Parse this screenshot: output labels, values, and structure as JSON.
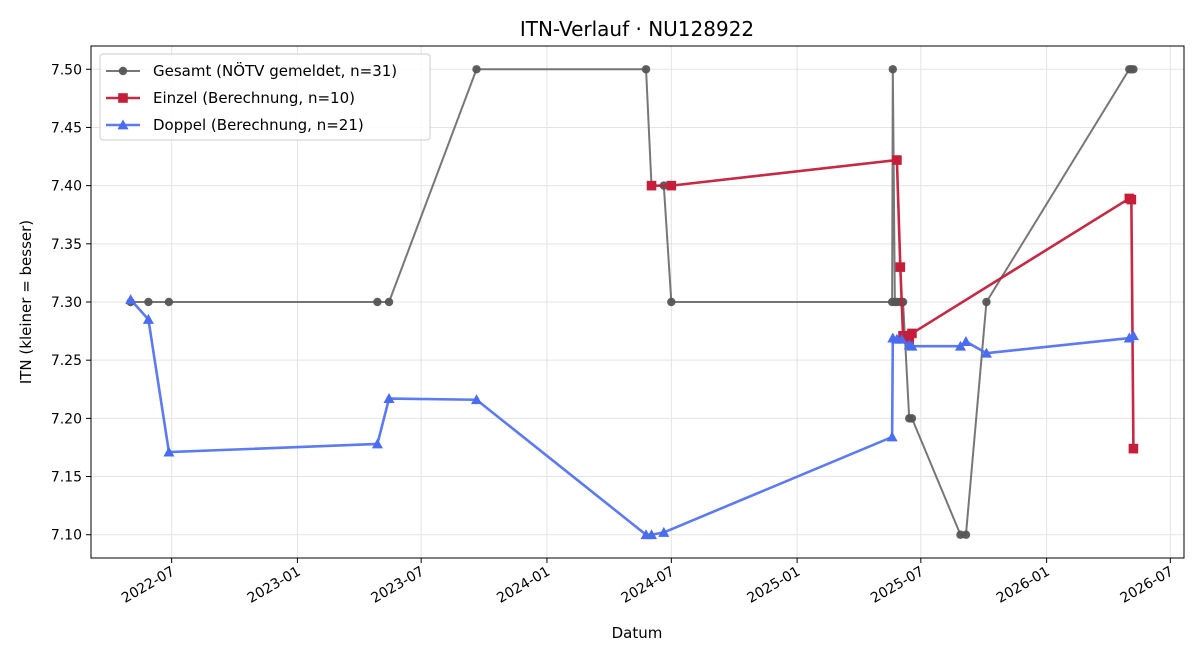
{
  "chart_data": {
    "type": "line",
    "title": "ITN-Verlauf · NU128922",
    "xlabel": "Datum",
    "ylabel": "ITN  (kleiner = besser)",
    "xlim": [
      "2022-03-05",
      "2026-07-21"
    ],
    "ylim": [
      7.08,
      7.52
    ],
    "x_ticks": [
      "2022-07-01",
      "2023-01-01",
      "2023-07-01",
      "2024-01-01",
      "2024-07-01",
      "2025-01-01",
      "2025-07-01",
      "2026-01-01",
      "2026-07-01"
    ],
    "x_tick_labels": [
      "2022-07",
      "2023-01",
      "2023-07",
      "2024-01",
      "2024-07",
      "2025-01",
      "2025-07",
      "2026-01",
      "2026-07"
    ],
    "y_ticks": [
      7.1,
      7.15,
      7.2,
      7.25,
      7.3,
      7.35,
      7.4,
      7.45,
      7.5
    ],
    "y_tick_labels": [
      "7.10",
      "7.15",
      "7.20",
      "7.25",
      "7.30",
      "7.35",
      "7.40",
      "7.45",
      "7.50"
    ],
    "grid": true,
    "legend_position": "top-left",
    "series": [
      {
        "name": "Gesamt (NÖTV gemeldet, n=31)",
        "color": "#555555",
        "marker": "circle",
        "points": [
          [
            "2022-05-02",
            7.3
          ],
          [
            "2022-05-28",
            7.3
          ],
          [
            "2022-06-27",
            7.3
          ],
          [
            "2023-04-28",
            7.3
          ],
          [
            "2023-05-15",
            7.3
          ],
          [
            "2023-09-20",
            7.5
          ],
          [
            "2024-05-25",
            7.5
          ],
          [
            "2024-06-02",
            7.4
          ],
          [
            "2024-06-20",
            7.4
          ],
          [
            "2024-07-01",
            7.3
          ],
          [
            "2025-05-20",
            7.3
          ],
          [
            "2025-05-21",
            7.5
          ],
          [
            "2025-05-24",
            7.3
          ],
          [
            "2025-05-27",
            7.3
          ],
          [
            "2025-06-01",
            7.3
          ],
          [
            "2025-06-03",
            7.3
          ],
          [
            "2025-06-05",
            7.3
          ],
          [
            "2025-06-14",
            7.2
          ],
          [
            "2025-06-18",
            7.2
          ],
          [
            "2025-08-28",
            7.1
          ],
          [
            "2025-09-05",
            7.1
          ],
          [
            "2025-10-05",
            7.3
          ],
          [
            "2026-05-02",
            7.5
          ],
          [
            "2026-05-05",
            7.5
          ],
          [
            "2026-05-08",
            7.5
          ]
        ]
      },
      {
        "name": "Einzel (Berechnung, n=10)",
        "color": "#c41e3a",
        "marker": "square",
        "points": [
          [
            "2024-06-02",
            7.4
          ],
          [
            "2024-07-01",
            7.4
          ],
          [
            "2025-05-27",
            7.422
          ],
          [
            "2025-06-01",
            7.33
          ],
          [
            "2025-06-05",
            7.271
          ],
          [
            "2025-06-14",
            7.268
          ],
          [
            "2025-06-18",
            7.273
          ],
          [
            "2026-05-02",
            7.389
          ],
          [
            "2026-05-05",
            7.388
          ],
          [
            "2026-05-08",
            7.174
          ]
        ]
      },
      {
        "name": "Doppel (Berechnung, n=21)",
        "color": "#4a6cf0",
        "marker": "triangle",
        "points": [
          [
            "2022-05-02",
            7.302
          ],
          [
            "2022-05-28",
            7.285
          ],
          [
            "2022-06-27",
            7.171
          ],
          [
            "2023-04-28",
            7.178
          ],
          [
            "2023-05-15",
            7.217
          ],
          [
            "2023-09-20",
            7.216
          ],
          [
            "2024-05-25",
            7.1
          ],
          [
            "2024-06-02",
            7.1
          ],
          [
            "2024-06-20",
            7.102
          ],
          [
            "2025-05-20",
            7.184
          ],
          [
            "2025-05-21",
            7.269
          ],
          [
            "2025-05-27",
            7.268
          ],
          [
            "2025-06-03",
            7.268
          ],
          [
            "2025-06-14",
            7.263
          ],
          [
            "2025-06-18",
            7.262
          ],
          [
            "2025-08-28",
            7.262
          ],
          [
            "2025-09-05",
            7.266
          ],
          [
            "2025-10-05",
            7.256
          ],
          [
            "2026-05-02",
            7.269
          ],
          [
            "2026-05-08",
            7.271
          ]
        ]
      }
    ]
  }
}
